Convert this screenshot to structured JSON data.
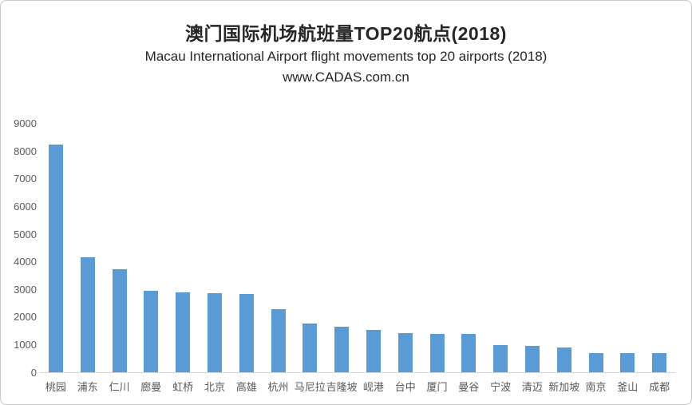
{
  "header": {
    "title": "澳门国际机场航班量TOP20航点(2018)",
    "subtitle": "Macau International Airport  flight movements top 20 airports (2018)",
    "watermark": "www.CADAS.com.cn"
  },
  "chart_data": {
    "type": "bar",
    "title": "澳门国际机场航班量TOP20航点(2018)",
    "subtitle": "Macau International Airport  flight movements top 20 airports (2018)",
    "source_watermark": "www.CADAS.com.cn",
    "categories": [
      "桃园",
      "浦东",
      "仁川",
      "廊曼",
      "虹桥",
      "北京",
      "高雄",
      "杭州",
      "马尼拉",
      "吉隆坡",
      "岘港",
      "台中",
      "厦门",
      "曼谷",
      "宁波",
      "清迈",
      "新加坡",
      "南京",
      "釜山",
      "成都"
    ],
    "values": [
      8250,
      4150,
      3740,
      2940,
      2880,
      2850,
      2830,
      2270,
      1750,
      1650,
      1530,
      1420,
      1390,
      1380,
      990,
      960,
      890,
      700,
      690,
      680
    ],
    "xlabel": "",
    "ylabel": "",
    "ylim": [
      0,
      9000
    ],
    "yticks": [
      0,
      1000,
      2000,
      3000,
      4000,
      5000,
      6000,
      7000,
      8000,
      9000
    ],
    "grid": false,
    "legend_position": "none",
    "colors": {
      "bar": "#5b9bd5",
      "axis_line": "#d6d6d6",
      "tick_label": "#595959",
      "title_text": "#262626"
    }
  }
}
